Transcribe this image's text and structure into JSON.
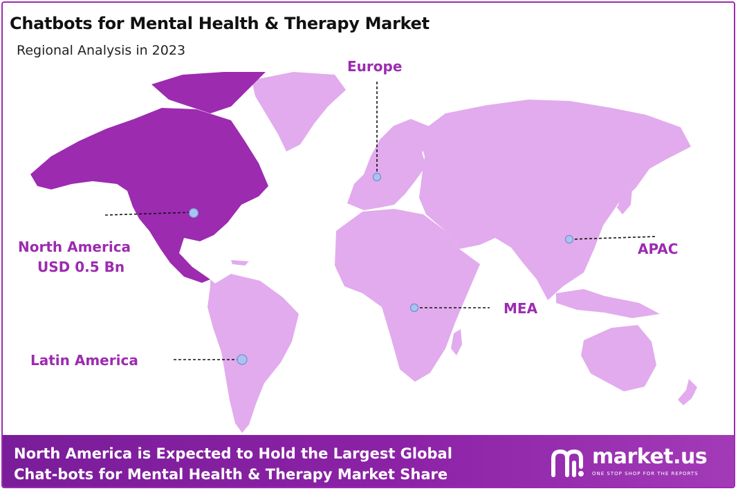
{
  "header": {
    "title": "Chatbots for Mental Health & Therapy Market",
    "subtitle": "Regional Analysis in 2023"
  },
  "map": {
    "highlight_color": "#9c2bb0",
    "land_color": "#e2abed",
    "marker_color": "#a9c4f0",
    "regions": {
      "europe": {
        "label": "Europe"
      },
      "north_america": {
        "label": "North America",
        "value": "USD 0.5 Bn",
        "highlighted": true
      },
      "latin_america": {
        "label": "Latin America"
      },
      "mea": {
        "label": "MEA"
      },
      "apac": {
        "label": "APAC"
      }
    }
  },
  "footer": {
    "line1": "North America is Expected to Hold the Largest Global",
    "line2": "Chat-bots for Mental Health & Therapy  Market Share",
    "brand_name": "market.us",
    "brand_tagline": "ONE STOP SHOP FOR THE REPORTS",
    "background_color": "#8521a3"
  }
}
